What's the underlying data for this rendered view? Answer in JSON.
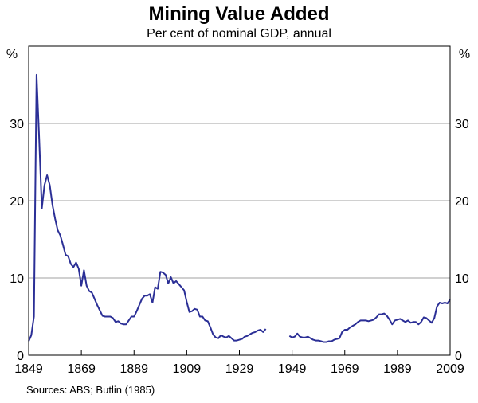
{
  "chart_data": {
    "type": "line",
    "title": "Mining Value Added",
    "subtitle": "Per cent of nominal GDP, annual",
    "source": "Sources: ABS; Butlin (1985)",
    "y_unit_left": "%",
    "y_unit_right": "%",
    "xlim": [
      1849,
      2009
    ],
    "ylim": [
      0,
      40
    ],
    "x_ticks": [
      1849,
      1869,
      1889,
      1909,
      1929,
      1949,
      1969,
      1989,
      2009
    ],
    "y_ticks": [
      0,
      10,
      20,
      30
    ],
    "grid": true,
    "line_color": "#2b2f96",
    "series": [
      {
        "segments": [
          {
            "x": [
              1849,
              1850,
              1851,
              1852,
              1853,
              1854,
              1855,
              1856,
              1857,
              1858,
              1859,
              1860,
              1861,
              1862,
              1863,
              1864,
              1865,
              1866,
              1867,
              1868,
              1869,
              1870,
              1871,
              1872,
              1873,
              1874,
              1875,
              1876,
              1877,
              1878,
              1879,
              1880,
              1881,
              1882,
              1883,
              1884,
              1885,
              1886,
              1887,
              1888,
              1889,
              1890,
              1891,
              1892,
              1893,
              1894,
              1895,
              1896,
              1897,
              1898,
              1899,
              1900,
              1901,
              1902,
              1903,
              1904,
              1905,
              1906,
              1907,
              1908,
              1909,
              1910,
              1911,
              1912,
              1913,
              1914,
              1915,
              1916,
              1917,
              1918,
              1919,
              1920,
              1921,
              1922,
              1923,
              1924,
              1925,
              1926,
              1927,
              1928,
              1929,
              1930,
              1931,
              1932,
              1933,
              1934,
              1935,
              1936,
              1937,
              1938,
              1939
            ],
            "y": [
              1.8,
              2.6,
              5.0,
              36.3,
              28.0,
              19.0,
              22.0,
              23.3,
              22.0,
              19.5,
              17.7,
              16.2,
              15.5,
              14.3,
              13.0,
              12.8,
              11.8,
              11.4,
              12.0,
              11.2,
              9.0,
              11.0,
              9.0,
              8.3,
              8.1,
              7.3,
              6.5,
              5.8,
              5.1,
              5.0,
              5.0,
              5.0,
              4.8,
              4.3,
              4.4,
              4.1,
              4.0,
              4.0,
              4.5,
              5.0,
              5.0,
              5.7,
              6.5,
              7.3,
              7.7,
              7.7,
              7.9,
              6.8,
              8.8,
              8.6,
              10.8,
              10.7,
              10.4,
              9.3,
              10.1,
              9.3,
              9.6,
              9.2,
              8.8,
              8.4,
              6.9,
              5.6,
              5.7,
              6.0,
              5.9,
              5.0,
              5.0,
              4.5,
              4.4,
              3.6,
              2.7,
              2.3,
              2.2,
              2.6,
              2.4,
              2.3,
              2.5,
              2.2,
              1.9,
              1.9,
              2.0,
              2.1,
              2.4,
              2.5,
              2.7,
              2.9,
              3.0,
              3.2,
              3.3,
              3.0,
              3.4
            ]
          },
          {
            "x": [
              1948,
              1949,
              1950,
              1951,
              1952,
              1953,
              1954,
              1955,
              1956,
              1957,
              1958,
              1959,
              1960,
              1961,
              1962,
              1963,
              1964,
              1965,
              1966,
              1967,
              1968,
              1969,
              1970,
              1971,
              1972,
              1973,
              1974,
              1975,
              1976,
              1977,
              1978,
              1979,
              1980,
              1981,
              1982,
              1983,
              1984,
              1985,
              1986,
              1987,
              1988,
              1989,
              1990,
              1991,
              1992,
              1993,
              1994,
              1995,
              1996,
              1997,
              1998,
              1999,
              2000,
              2001,
              2002,
              2003,
              2004,
              2005,
              2006,
              2007,
              2008,
              2009
            ],
            "y": [
              2.5,
              2.3,
              2.4,
              2.8,
              2.4,
              2.3,
              2.3,
              2.4,
              2.2,
              2.0,
              1.9,
              1.9,
              1.8,
              1.7,
              1.7,
              1.8,
              1.8,
              2.0,
              2.1,
              2.2,
              3.0,
              3.3,
              3.3,
              3.6,
              3.8,
              4.0,
              4.3,
              4.5,
              4.5,
              4.5,
              4.4,
              4.5,
              4.6,
              4.9,
              5.3,
              5.3,
              5.4,
              5.1,
              4.6,
              4.0,
              4.5,
              4.6,
              4.7,
              4.5,
              4.3,
              4.5,
              4.2,
              4.3,
              4.3,
              4.0,
              4.3,
              4.9,
              4.8,
              4.5,
              4.2,
              4.8,
              6.3,
              6.8,
              6.7,
              6.8,
              6.7,
              7.2
            ]
          }
        ]
      }
    ]
  }
}
